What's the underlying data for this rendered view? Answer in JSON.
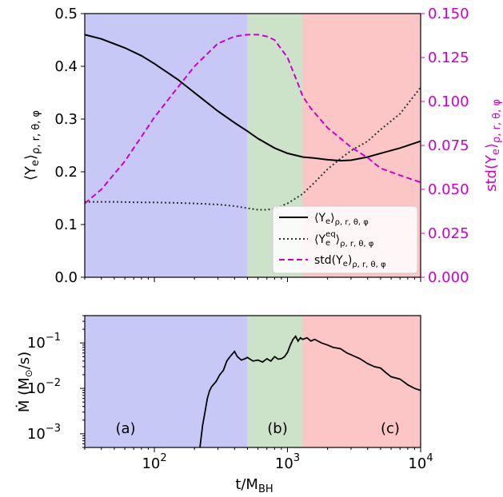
{
  "chart_data": [
    {
      "type": "line",
      "xscale": "log",
      "xlim": [
        30,
        10000
      ],
      "ylim": [
        0,
        0.5
      ],
      "y2lim": [
        0,
        0.15
      ],
      "ylabel": "⟨Y_e⟩ρ,r,θ,φ",
      "y2label": "std(Y_e)ρ,r,θ,φ",
      "yticks": [
        "0.0",
        "0.1",
        "0.2",
        "0.3",
        "0.4",
        "0.5"
      ],
      "y2ticks": [
        "0.000",
        "0.025",
        "0.050",
        "0.075",
        "0.100",
        "0.125",
        "0.150"
      ],
      "regions": [
        {
          "from": 30,
          "to": 500,
          "color": "#c8c8f6"
        },
        {
          "from": 500,
          "to": 1300,
          "color": "#cde3c9"
        },
        {
          "from": 1300,
          "to": 10000,
          "color": "#fcc6c6"
        }
      ],
      "legend_position": "lower-right",
      "series": [
        {
          "name": "⟨Ye⟩ρ,r,θ,φ",
          "axis": "left",
          "style": "solid",
          "color": "#000000",
          "x": [
            30,
            40,
            60,
            80,
            100,
            150,
            200,
            300,
            400,
            500,
            600,
            800,
            1000,
            1300,
            1600,
            2000,
            2500,
            3000,
            4000,
            5000,
            7000,
            10000
          ],
          "y": [
            0.46,
            0.452,
            0.435,
            0.42,
            0.405,
            0.375,
            0.35,
            0.315,
            0.293,
            0.277,
            0.263,
            0.245,
            0.235,
            0.228,
            0.226,
            0.223,
            0.221,
            0.222,
            0.228,
            0.235,
            0.245,
            0.258
          ]
        },
        {
          "name": "⟨Ye^eq⟩ρ,r,θ,φ",
          "axis": "left",
          "style": "dotted",
          "color": "#333333",
          "x": [
            30,
            50,
            80,
            100,
            150,
            200,
            300,
            400,
            500,
            600,
            700,
            800,
            1000,
            1300,
            1600,
            2000,
            2500,
            3000,
            4000,
            5000,
            7000,
            10000
          ],
          "y": [
            0.143,
            0.143,
            0.142,
            0.142,
            0.141,
            0.14,
            0.138,
            0.135,
            0.131,
            0.128,
            0.128,
            0.13,
            0.14,
            0.158,
            0.18,
            0.205,
            0.225,
            0.24,
            0.258,
            0.28,
            0.31,
            0.36
          ]
        },
        {
          "name": "std(Ye)ρ,r,θ,φ",
          "axis": "right",
          "style": "dashed",
          "color": "#cc00cc",
          "x": [
            30,
            40,
            60,
            80,
            100,
            150,
            200,
            300,
            400,
            500,
            600,
            700,
            800,
            1000,
            1200,
            1300,
            1500,
            2000,
            2500,
            3000,
            4000,
            5000,
            7000,
            10000
          ],
          "y": [
            0.042,
            0.05,
            0.066,
            0.08,
            0.091,
            0.108,
            0.12,
            0.133,
            0.137,
            0.138,
            0.138,
            0.137,
            0.135,
            0.125,
            0.11,
            0.103,
            0.096,
            0.085,
            0.079,
            0.074,
            0.068,
            0.062,
            0.058,
            0.054
          ]
        }
      ]
    },
    {
      "type": "line",
      "xscale": "log",
      "yscale": "log",
      "xlim": [
        30,
        10000
      ],
      "ylim": [
        0.0005,
        0.4
      ],
      "xlabel": "t/M_BH",
      "ylabel": "Ṁ (M⊙/s)",
      "xticks": [
        "10",
        "10",
        "10"
      ],
      "xtick_exponents": [
        "2",
        "3",
        "4"
      ],
      "yticks": [
        "10",
        "10",
        "10"
      ],
      "ytick_exponents": [
        "−1",
        "−2",
        "−3"
      ],
      "region_labels": [
        "(a)",
        "(b)",
        "(c)"
      ],
      "series": [
        {
          "color": "#000000",
          "style": "solid",
          "x": [
            220,
            230,
            240,
            250,
            260,
            270,
            290,
            310,
            330,
            350,
            370,
            400,
            420,
            450,
            480,
            500,
            550,
            600,
            650,
            700,
            750,
            800,
            850,
            900,
            950,
            1000,
            1050,
            1100,
            1150,
            1200,
            1250,
            1300,
            1400,
            1500,
            1600,
            1800,
            2000,
            2200,
            2500,
            2800,
            3000,
            3500,
            4000,
            4500,
            5000,
            5500,
            6000,
            7000,
            8000,
            9000,
            10000
          ],
          "y": [
            0.0005,
            0.0015,
            0.003,
            0.006,
            0.009,
            0.011,
            0.014,
            0.02,
            0.025,
            0.04,
            0.05,
            0.065,
            0.05,
            0.042,
            0.045,
            0.048,
            0.04,
            0.042,
            0.038,
            0.045,
            0.04,
            0.05,
            0.044,
            0.045,
            0.05,
            0.062,
            0.09,
            0.12,
            0.14,
            0.11,
            0.13,
            0.12,
            0.13,
            0.11,
            0.12,
            0.1,
            0.09,
            0.08,
            0.075,
            0.06,
            0.055,
            0.045,
            0.035,
            0.03,
            0.028,
            0.022,
            0.018,
            0.016,
            0.012,
            0.01,
            0.009
          ]
        }
      ]
    }
  ]
}
